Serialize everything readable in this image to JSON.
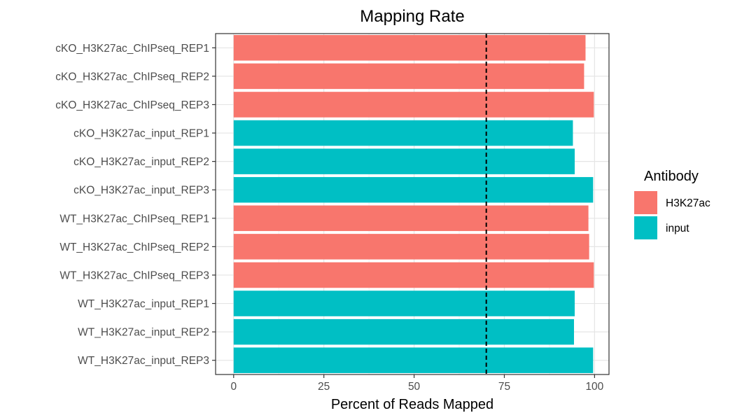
{
  "chart_data": {
    "type": "bar",
    "orientation": "horizontal",
    "title": "Mapping Rate",
    "xlabel": "Percent of Reads Mapped",
    "ylabel": "",
    "xlim": [
      -5,
      104
    ],
    "xticks": [
      0,
      25,
      50,
      75,
      100
    ],
    "categories": [
      "cKO_H3K27ac_ChIPseq_REP1",
      "cKO_H3K27ac_ChIPseq_REP2",
      "cKO_H3K27ac_ChIPseq_REP3",
      "cKO_H3K27ac_input_REP1",
      "cKO_H3K27ac_input_REP2",
      "cKO_H3K27ac_input_REP3",
      "WT_H3K27ac_ChIPseq_REP1",
      "WT_H3K27ac_ChIPseq_REP2",
      "WT_H3K27ac_ChIPseq_REP3",
      "WT_H3K27ac_input_REP1",
      "WT_H3K27ac_input_REP2",
      "WT_H3K27ac_input_REP3"
    ],
    "values": [
      97.5,
      97.1,
      99.8,
      94.0,
      94.5,
      99.6,
      98.3,
      98.5,
      99.8,
      94.5,
      94.3,
      99.6
    ],
    "groups": [
      "H3K27ac",
      "H3K27ac",
      "H3K27ac",
      "input",
      "input",
      "input",
      "H3K27ac",
      "H3K27ac",
      "H3K27ac",
      "input",
      "input",
      "input"
    ],
    "reference_line": {
      "x": 70,
      "style": "dashed"
    },
    "grid": true,
    "legend": {
      "title": "Antibody",
      "placement": "right",
      "entries": [
        {
          "label": "H3K27ac",
          "color": "#F8766D"
        },
        {
          "label": "input",
          "color": "#00BFC4"
        }
      ]
    }
  }
}
